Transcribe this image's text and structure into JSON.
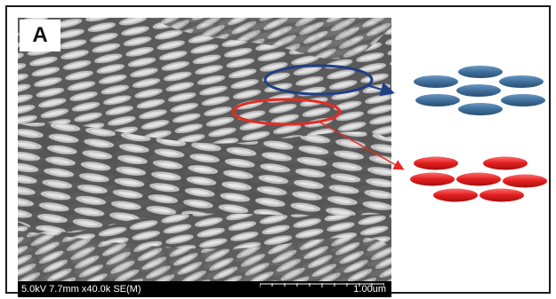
{
  "figure": {
    "panel_label": "A",
    "sem_info": "5.0kV 7.7mm x40.0k SE(M)",
    "scale_label": "1.00um"
  },
  "colors": {
    "blue_ellipse": "#1f3f86",
    "blue_particle": "#3f6f9a",
    "red_ellipse": "#e52b24",
    "red_particle": "#e21e1e",
    "arrow_blue": "#1f3f86",
    "arrow_red": "#e52b24"
  },
  "icons": {
    "blue_stack": "ellipse-particles-icon",
    "red_stack": "ellipse-particles-icon"
  }
}
